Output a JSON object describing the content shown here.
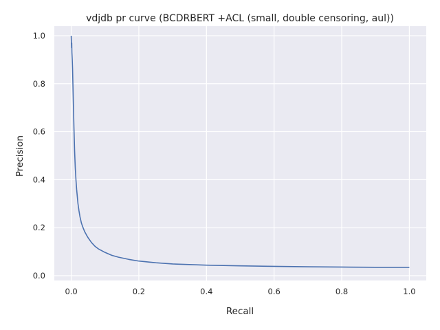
{
  "chart_data": {
    "type": "line",
    "title": "vdjdb pr curve (BCDRBERT +ACL (small, double censoring, aul))",
    "xlabel": "Recall",
    "ylabel": "Precision",
    "xlim": [
      -0.05,
      1.05
    ],
    "ylim": [
      -0.02,
      1.04
    ],
    "xticks": [
      0.0,
      0.2,
      0.4,
      0.6,
      0.8,
      1.0
    ],
    "xtick_labels": [
      "0.0",
      "0.2",
      "0.4",
      "0.6",
      "0.8",
      "1.0"
    ],
    "yticks": [
      0.0,
      0.2,
      0.4,
      0.6,
      0.8,
      1.0
    ],
    "ytick_labels": [
      "0.0",
      "0.2",
      "0.4",
      "0.6",
      "0.8",
      "1.0"
    ],
    "grid": true,
    "legend": "none",
    "colors": {
      "background": "#eaeaf2",
      "grid": "#ffffff",
      "line": "#4c72b0"
    },
    "series": [
      {
        "x": [
          0.0,
          0.001,
          0.0015,
          0.002,
          0.003,
          0.004,
          0.005,
          0.006,
          0.007,
          0.008,
          0.009,
          0.01,
          0.012,
          0.014,
          0.016,
          0.018,
          0.02,
          0.023,
          0.026,
          0.03,
          0.035,
          0.04,
          0.045,
          0.05,
          0.06,
          0.07,
          0.08,
          0.1,
          0.12,
          0.14,
          0.17,
          0.2,
          0.25,
          0.3,
          0.4,
          0.5,
          0.6,
          0.7,
          0.8,
          0.9,
          1.0
        ],
        "y": [
          1.0,
          0.95,
          0.97,
          0.93,
          0.9,
          0.86,
          0.8,
          0.74,
          0.68,
          0.62,
          0.57,
          0.52,
          0.45,
          0.4,
          0.36,
          0.33,
          0.3,
          0.27,
          0.245,
          0.22,
          0.2,
          0.183,
          0.17,
          0.158,
          0.138,
          0.123,
          0.112,
          0.097,
          0.085,
          0.077,
          0.068,
          0.061,
          0.054,
          0.049,
          0.044,
          0.041,
          0.039,
          0.037,
          0.036,
          0.035,
          0.035
        ]
      }
    ]
  }
}
